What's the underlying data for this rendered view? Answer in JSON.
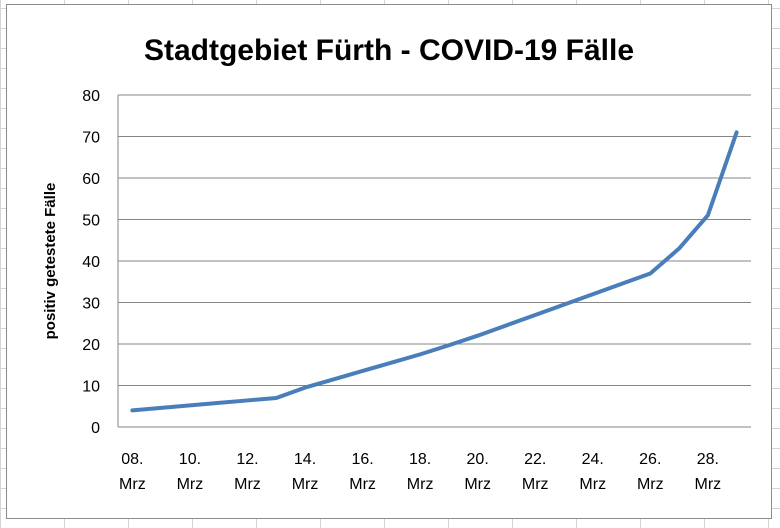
{
  "chart_data": {
    "type": "line",
    "title": "Stadtgebiet Fürth - COVID-19 Fälle",
    "xlabel": "",
    "ylabel": "positiv getestete Fälle",
    "ylim": [
      0,
      80
    ],
    "yticks": [
      0,
      10,
      20,
      30,
      40,
      50,
      60,
      70,
      80
    ],
    "grid": true,
    "legend": "none",
    "line_color": "#4a7ebb",
    "x": [
      "08. Mrz",
      "09. Mrz",
      "10. Mrz",
      "11. Mrz",
      "12. Mrz",
      "13. Mrz",
      "14. Mrz",
      "15. Mrz",
      "16. Mrz",
      "17. Mrz",
      "18. Mrz",
      "19. Mrz",
      "20. Mrz",
      "21. Mrz",
      "22. Mrz",
      "23. Mrz",
      "24. Mrz",
      "25. Mrz",
      "26. Mrz",
      "27. Mrz",
      "28. Mrz",
      "29. Mrz"
    ],
    "xtick_labels": [
      [
        "08.",
        "Mrz"
      ],
      [
        "10.",
        "Mrz"
      ],
      [
        "12.",
        "Mrz"
      ],
      [
        "14.",
        "Mrz"
      ],
      [
        "16.",
        "Mrz"
      ],
      [
        "18.",
        "Mrz"
      ],
      [
        "20.",
        "Mrz"
      ],
      [
        "22.",
        "Mrz"
      ],
      [
        "24.",
        "Mrz"
      ],
      [
        "26.",
        "Mrz"
      ],
      [
        "28.",
        "Mrz"
      ]
    ],
    "values": [
      4,
      4.6,
      5.2,
      5.8,
      6.4,
      7,
      9.5,
      11.5,
      13.5,
      15.5,
      17.5,
      19.7,
      22,
      24.5,
      27,
      29.5,
      32,
      34.5,
      37,
      43,
      51,
      71
    ]
  }
}
